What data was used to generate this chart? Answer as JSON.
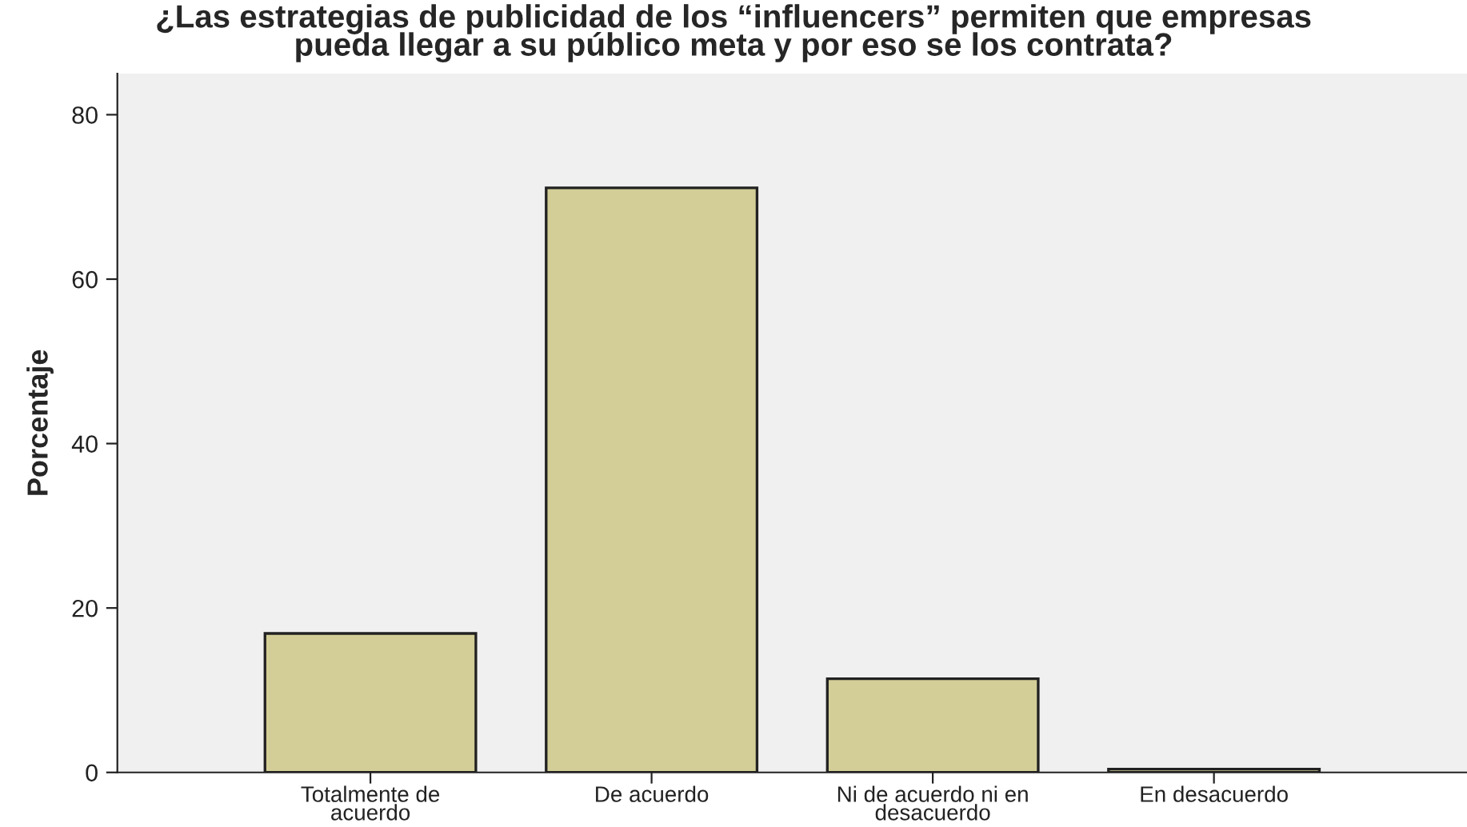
{
  "chart_data": {
    "type": "bar",
    "title": "¿Las estrategias de publicidad de los “influencers” permiten que empresas pueda llegar a su público meta y por eso se los contrata?",
    "ylabel": "Porcentaje",
    "categories": [
      "Totalmente de acuerdo",
      "De acuerdo",
      "Ni de acuerdo ni en desacuerdo",
      "En desacuerdo"
    ],
    "values": [
      16.9,
      71.1,
      11.4,
      0.4
    ],
    "color": "#d3ce97",
    "ylim": [
      0,
      85
    ],
    "yticks": [
      0,
      20,
      40,
      60,
      80
    ],
    "grid": false
  }
}
